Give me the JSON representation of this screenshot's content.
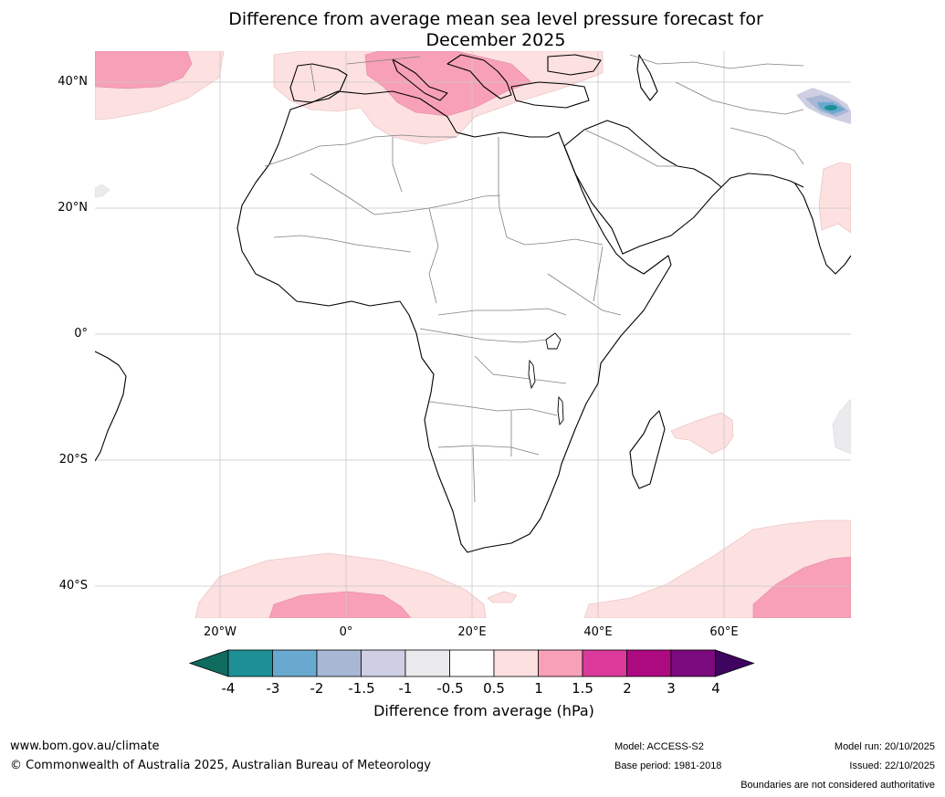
{
  "title": {
    "line1": "Difference from average mean sea level pressure forecast for",
    "line2": "December 2025"
  },
  "lat_labels": [
    "40°N",
    "20°N",
    "0°",
    "20°S",
    "40°S"
  ],
  "lon_labels": [
    "20°W",
    "0°",
    "20°E",
    "40°E",
    "60°E"
  ],
  "legend": {
    "title": "Difference from average (hPa)",
    "ticks": [
      "-4",
      "-3",
      "-2",
      "-1.5",
      "-1",
      "-0.5",
      "0.5",
      "1",
      "1.5",
      "2",
      "3",
      "4"
    ],
    "colors": [
      "#0f6b5e",
      "#1f8f96",
      "#69a9d0",
      "#a7b7d4",
      "#cfcfe3",
      "#ebebee",
      "#ffffff",
      "#fde0e0",
      "#f8a0b8",
      "#dc3a9a",
      "#ad0a82",
      "#7a0a7d",
      "#3f0360"
    ]
  },
  "footer": {
    "site": "www.bom.gov.au/climate",
    "copyright": "© Commonwealth of Australia 2025, Australian Bureau of Meteorology",
    "model": "Model: ACCESS-S2",
    "base_period": "Base period: 1981-2018",
    "model_run": "Model run: 20/10/2025",
    "issued": "Issued: 22/10/2025",
    "disclaimer": "Boundaries are not considered authoritative"
  }
}
